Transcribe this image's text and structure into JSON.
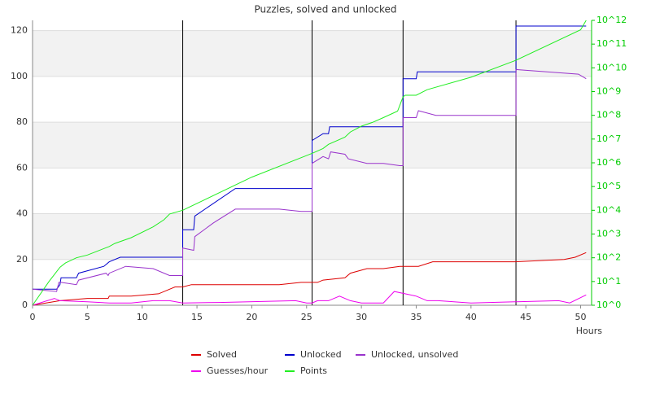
{
  "chart_data": {
    "type": "line",
    "title": "Puzzles, solved and unlocked",
    "xlabel": "Hours",
    "xlim": [
      0,
      51
    ],
    "xticks": [
      0,
      5,
      10,
      15,
      20,
      25,
      30,
      35,
      40,
      45,
      50
    ],
    "ylim": [
      0,
      124.5
    ],
    "yticks": [
      0,
      20,
      40,
      60,
      80,
      100,
      120
    ],
    "y2lim": [
      1,
      1000000000000
    ],
    "y2_log_scale": true,
    "y2ticks": [
      {
        "value": 1,
        "label": "10^0"
      },
      {
        "value": 10,
        "label": "10^1"
      },
      {
        "value": 100,
        "label": "10^2"
      },
      {
        "value": 1000,
        "label": "10^3"
      },
      {
        "value": 10000,
        "label": "10^4"
      },
      {
        "value": 100000,
        "label": "10^5"
      },
      {
        "value": 1000000,
        "label": "10^6"
      },
      {
        "value": 10000000,
        "label": "10^7"
      },
      {
        "value": 100000000,
        "label": "10^8"
      },
      {
        "value": 1000000000,
        "label": "10^9"
      },
      {
        "value": 10000000000,
        "label": "10^10"
      },
      {
        "value": 100000000000,
        "label": "10^11"
      },
      {
        "value": 1000000000000,
        "label": "10^12"
      }
    ],
    "y2_color": "#00cc00",
    "grid": true,
    "vertical_lines": [
      13.7,
      25.5,
      33.8,
      44.1
    ],
    "vertical_line_color": "#000000",
    "legend_position": "bottom",
    "series": [
      {
        "name": "Solved",
        "color": "#dd0000",
        "x": [
          0,
          2.5,
          5,
          6.9,
          7,
          9,
          11.5,
          12.5,
          13,
          13.7,
          14.5,
          22.5,
          24.5,
          26,
          26.5,
          28.5,
          29,
          30.5,
          32,
          33.5,
          35.2,
          36.5,
          44,
          48.5,
          49.5,
          50.5
        ],
        "values": [
          0,
          2,
          3,
          3,
          4,
          4,
          5,
          7,
          8,
          8,
          9,
          9,
          10,
          10,
          11,
          12,
          14,
          16,
          16,
          17,
          17,
          19,
          19,
          20,
          21,
          23
        ]
      },
      {
        "name": "Unlocked",
        "color": "#0000cc",
        "x": [
          0,
          2.2,
          2.5,
          2.6,
          4,
          4.2,
          6.5,
          7,
          8,
          13.7,
          13.7,
          14.7,
          14.8,
          18.5,
          25.5,
          25.5,
          26.5,
          27,
          27.1,
          33.8,
          33.8,
          35,
          35.1,
          44.1,
          44.1,
          50.5
        ],
        "values": [
          7,
          7,
          9,
          12,
          12,
          14,
          17,
          19,
          21,
          21,
          33,
          33,
          39,
          51,
          51,
          72,
          75,
          75,
          78,
          78,
          99,
          99,
          102,
          102,
          122,
          122
        ]
      },
      {
        "name": "Unlocked, unsolved",
        "color": "#9933cc",
        "x": [
          0,
          2.2,
          2.4,
          2.6,
          4,
          4.2,
          6.7,
          6.9,
          7,
          8.5,
          11,
          12.5,
          13.7,
          13.7,
          14.7,
          14.8,
          16.5,
          18.5,
          22.5,
          24.5,
          25.5,
          25.5,
          26.5,
          27,
          27.2,
          28.5,
          28.8,
          30.5,
          32,
          33.5,
          33.8,
          33.8,
          35,
          35.2,
          36.8,
          44.1,
          44.1,
          49.8,
          50.5
        ],
        "values": [
          7,
          6,
          10,
          10,
          9,
          11,
          14,
          13,
          14,
          17,
          16,
          13,
          13,
          25,
          24,
          30,
          36,
          42,
          42,
          41,
          41,
          62,
          65,
          64,
          67,
          66,
          64,
          62,
          62,
          61,
          61,
          82,
          82,
          85,
          83,
          83,
          103,
          101,
          99
        ]
      },
      {
        "name": "Guesses/hour",
        "color": "#ee00ee",
        "x": [
          0,
          2,
          2.5,
          5,
          7,
          9,
          11,
          12.5,
          13.7,
          17,
          24,
          25,
          25.5,
          26,
          27,
          28,
          29,
          30,
          32,
          33,
          35,
          36,
          37,
          40,
          44,
          48,
          49,
          50.5
        ],
        "values": [
          0,
          3,
          2,
          1.5,
          1,
          1,
          2,
          2,
          1,
          1.2,
          2,
          1,
          1,
          2,
          2,
          4,
          2,
          1,
          1,
          6,
          4,
          2,
          2,
          1,
          1.5,
          2,
          1,
          4.5
        ]
      },
      {
        "name": "Points",
        "color": "#22ee22",
        "axis": "y2",
        "x": [
          0,
          1.5,
          2.5,
          3,
          4,
          5,
          7,
          7.5,
          9,
          11,
          12,
          12.5,
          13.7,
          15.5,
          20,
          25.5,
          26.5,
          27,
          28.5,
          29,
          30,
          31,
          32,
          33.3,
          33.8,
          34,
          35,
          36,
          40,
          44,
          50,
          50.5
        ],
        "values": [
          1,
          10,
          40,
          60,
          100,
          130,
          300,
          400,
          700,
          2000,
          4000,
          7000,
          10000,
          25000,
          250000,
          2500000,
          4000000,
          6000000,
          12000000,
          20000000,
          35000000,
          50000000,
          80000000,
          150000000,
          600000000,
          700000000,
          700000000,
          1200000000,
          4000000000,
          20000000000,
          400000000000,
          1000000000000
        ]
      }
    ]
  }
}
